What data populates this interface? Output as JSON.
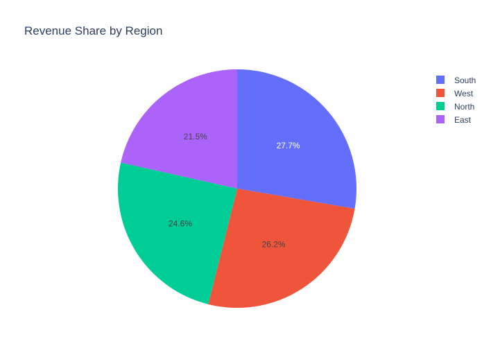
{
  "chart_data": {
    "type": "pie",
    "title": "Revenue Share by Region",
    "categories": [
      "South",
      "West",
      "North",
      "East"
    ],
    "values": [
      27.7,
      26.2,
      24.6,
      21.5
    ],
    "labels": [
      "27.7%",
      "26.2%",
      "24.6%",
      "21.5%"
    ],
    "colors": [
      "#636efa",
      "#ef553b",
      "#00cc96",
      "#ab63fa"
    ],
    "label_colors": [
      "#ffffff",
      "#444444",
      "#444444",
      "#444444"
    ],
    "legend_position": "top-right",
    "direction": "counterclockwise",
    "start": "top"
  }
}
